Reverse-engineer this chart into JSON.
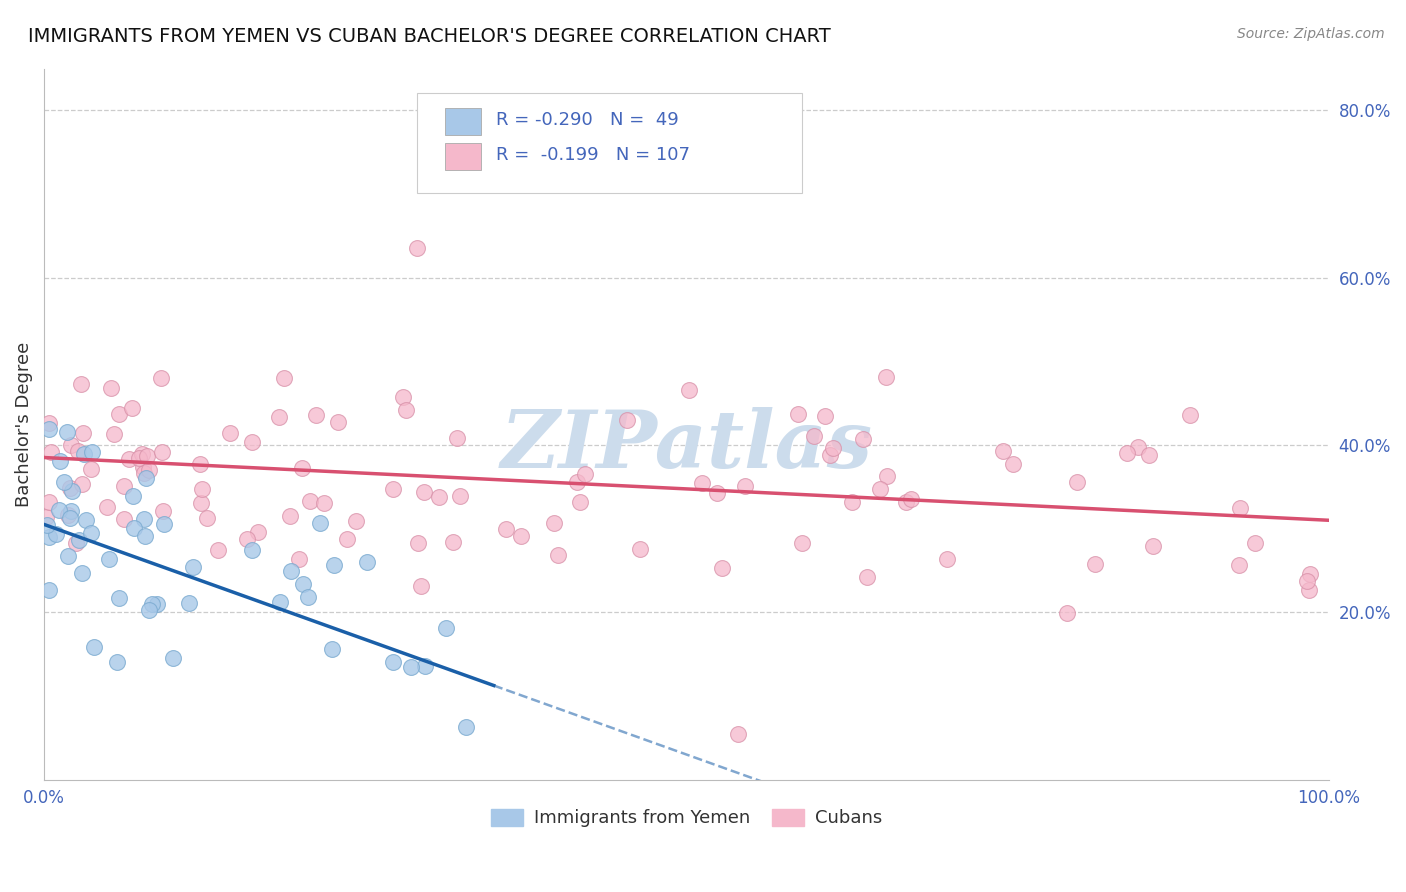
{
  "title": "IMMIGRANTS FROM YEMEN VS CUBAN BACHELOR'S DEGREE CORRELATION CHART",
  "source": "Source: ZipAtlas.com",
  "ylabel": "Bachelor's Degree",
  "legend_r1": "R = -0.290",
  "legend_n1": "N =  49",
  "legend_r2": "R = -0.199",
  "legend_n2": "N = 107",
  "legend_label1": "Immigrants from Yemen",
  "legend_label2": "Cubans",
  "color_yemen": "#a8c8e8",
  "color_cuban": "#f5b8cb",
  "color_yemen_line": "#1a5fa8",
  "color_cuban_line": "#d85070",
  "color_yemen_edge": "#7aaad0",
  "color_cuban_edge": "#d890a8",
  "watermark": "ZIPatlas",
  "xlim": [
    0.0,
    1.0
  ],
  "ylim": [
    0.0,
    0.85
  ],
  "bg_color": "#ffffff",
  "grid_color": "#cccccc",
  "watermark_color": "#ccdcec",
  "title_color": "#111111",
  "source_color": "#888888",
  "tick_color": "#4466bb",
  "ylabel_color": "#333333"
}
